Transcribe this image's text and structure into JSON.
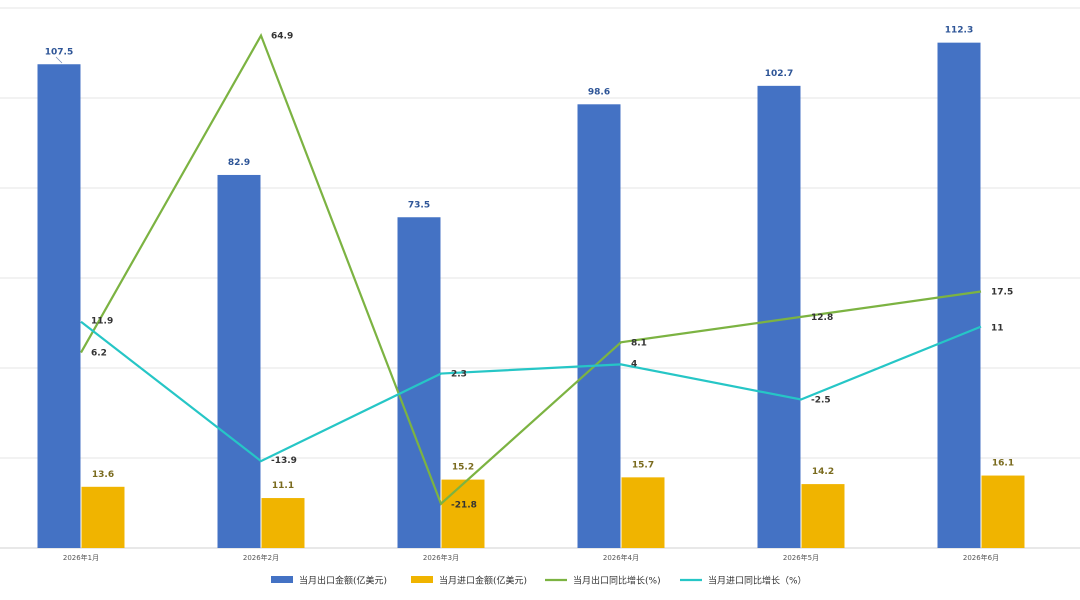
{
  "chart_data": {
    "type": "bar",
    "categories": [
      "2026年1月",
      "2026年2月",
      "2026年3月",
      "2026年4月",
      "2026年5月",
      "2026年6月"
    ],
    "bar_series": [
      {
        "name": "当月出口金额(亿美元)",
        "color": "#4472C4",
        "values": [
          107.5,
          82.9,
          73.5,
          98.6,
          102.7,
          112.3
        ]
      },
      {
        "name": "当月进口金额(亿美元)",
        "color": "#F0B400",
        "values": [
          13.6,
          11.1,
          15.2,
          15.7,
          14.2,
          16.1
        ]
      }
    ],
    "line_series": [
      {
        "name": "当月出口同比增长(%)",
        "color": "#7CB342",
        "values": [
          6.2,
          64.9,
          -21.8,
          8.1,
          12.8,
          17.5
        ]
      },
      {
        "name": "当月进口同比增长（%）",
        "color": "#26C6C6",
        "values": [
          11.9,
          -13.9,
          2.3,
          4,
          -2.5,
          11
        ]
      }
    ],
    "bar_axis_range": [
      0,
      120
    ],
    "line_axis_range": [
      -30,
      70
    ],
    "grid": true,
    "legend_position": "bottom"
  }
}
